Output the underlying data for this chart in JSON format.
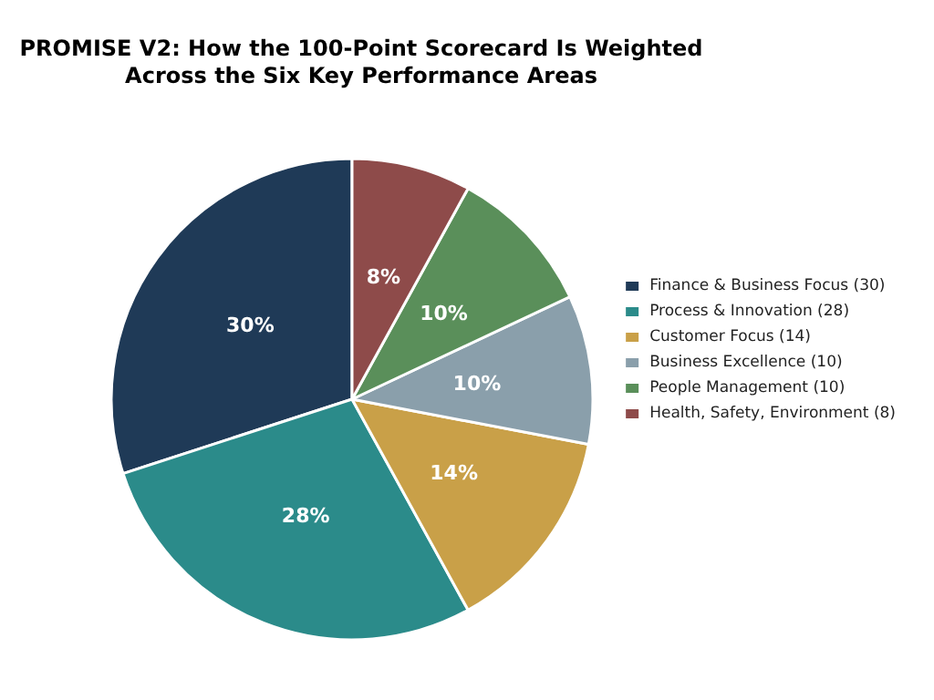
{
  "chart_data": {
    "type": "pie",
    "title": "PROMISE V2: How the 100-Point Scorecard Is Weighted\nAcross the Six Key Performance Areas",
    "categories": [
      "Finance & Business Focus (30)",
      "Process & Innovation (28)",
      "Customer Focus (14)",
      "Business Excellence (10)",
      "People Management (10)",
      "Health, Safety, Environment (8)"
    ],
    "values": [
      30,
      28,
      14,
      10,
      10,
      8
    ],
    "colors": [
      "#1f3a57",
      "#2b8b8a",
      "#c9a048",
      "#8a9fab",
      "#5a8f5a",
      "#8e4b4a"
    ],
    "value_labels": [
      "30%",
      "28%",
      "14%",
      "10%",
      "10%",
      "8%"
    ],
    "legend": "right"
  }
}
